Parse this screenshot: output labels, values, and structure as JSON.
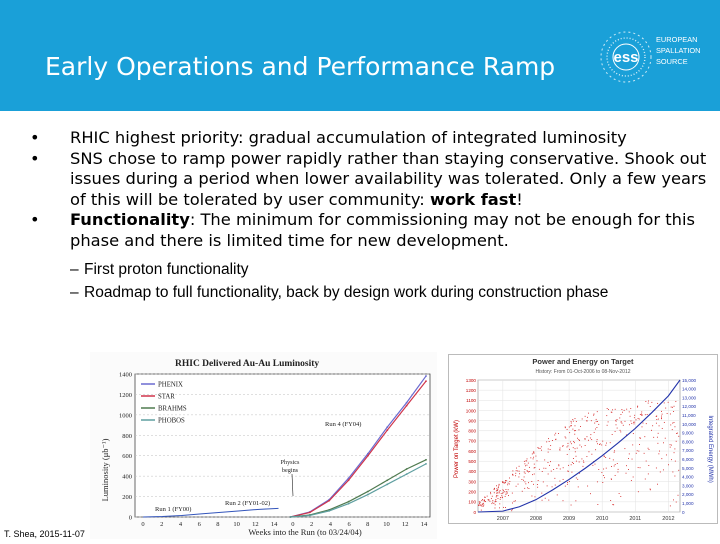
{
  "header": {
    "title": "Early Operations and Performance Ramp",
    "logo": {
      "mark": "ess",
      "line1": "EUROPEAN",
      "line2": "SPALLATION",
      "line3": "SOURCE"
    }
  },
  "bullets": [
    {
      "text": "RHIC highest priority: gradual accumulation of integrated luminosity"
    },
    {
      "text": "SNS chose to ramp power rapidly rather than staying conservative. Shook out issues during a period when lower availability was tolerated. Only a few years of this will be tolerated by user community: ",
      "bold_tail": "work fast",
      "tail_end": "!"
    },
    {
      "bold_head": "Functionality",
      "text": ": The minimum for commissioning may not be enough for this phase and there is limited time for new development."
    }
  ],
  "sub_bullets": [
    "First proton functionality",
    "Roadmap to full functionality, back by design work during construction phase"
  ],
  "footer": "T. Shea, 2015-11-07",
  "chart_data": [
    {
      "type": "line",
      "title": "RHIC Delivered Au-Au Luminosity",
      "xlabel": "Weeks into the Run   (to 03/24/04)",
      "ylabel": "Luminosity (μb⁻¹)",
      "x_ticks": [
        "0",
        "2",
        "4",
        "6",
        "8",
        "10",
        "12",
        "14",
        "0",
        "2",
        "4",
        "6",
        "8",
        "10",
        "12",
        "14"
      ],
      "y_ticks": [
        "0",
        "200",
        "400",
        "600",
        "800",
        "1000",
        "1200",
        "1400"
      ],
      "ylim": [
        0,
        1400
      ],
      "legend": [
        "PHENIX",
        "STAR",
        "BRAHMS",
        "PHOBOS"
      ],
      "annotations": [
        "Run 4 (FY04)",
        "Physics begins",
        "Run 2 (FY01-02)",
        "Run 1 (FY00)"
      ],
      "series": [
        {
          "name": "PHENIX",
          "color": "#6b6bd0",
          "x": [
            0,
            2,
            4,
            6,
            8,
            10,
            12,
            14
          ],
          "y": [
            0,
            50,
            170,
            380,
            620,
            880,
            1120,
            1380
          ]
        },
        {
          "name": "STAR",
          "color": "#d0344a",
          "x": [
            0,
            2,
            4,
            6,
            8,
            10,
            12,
            14
          ],
          "y": [
            0,
            45,
            160,
            360,
            600,
            850,
            1090,
            1330
          ]
        },
        {
          "name": "BRAHMS",
          "color": "#4f7a4f",
          "x": [
            0,
            2,
            4,
            6,
            8,
            10,
            12,
            14
          ],
          "y": [
            0,
            20,
            70,
            150,
            250,
            360,
            470,
            560
          ]
        },
        {
          "name": "PHOBOS",
          "color": "#5f9fa0",
          "x": [
            0,
            2,
            4,
            6,
            8,
            10,
            12,
            14
          ],
          "y": [
            0,
            15,
            60,
            130,
            220,
            320,
            420,
            520
          ]
        }
      ],
      "run2_series": {
        "color": "#3355bb",
        "x": [
          0,
          2,
          4,
          6,
          8,
          10,
          12,
          14
        ],
        "y": [
          0,
          5,
          15,
          30,
          45,
          60,
          75,
          85
        ]
      }
    },
    {
      "type": "scatter",
      "title": "Power and Energy on Target",
      "subtitle": "History:  From 01-Oct-2006 to 08-Nov-2012",
      "ylabel": "Power on Target (kW)",
      "y2label": "Integrated Energy (MWh)",
      "x_ticks": [
        "2007",
        "2008",
        "2009",
        "2010",
        "2011",
        "2012"
      ],
      "y_ticks": [
        "0",
        "100",
        "200",
        "300",
        "400",
        "500",
        "600",
        "700",
        "800",
        "900",
        "1000",
        "1100",
        "1200",
        "1300"
      ],
      "ylim": [
        0,
        1300
      ],
      "y2_ticks": [
        "0",
        "1,000",
        "2,000",
        "3,000",
        "4,000",
        "5,000",
        "6,000",
        "7,000",
        "8,000",
        "9,000",
        "10,000",
        "11,000",
        "12,000",
        "13,000",
        "14,000",
        "15,000"
      ],
      "y2lim": [
        0,
        15000
      ],
      "power_color": "#d42020",
      "energy_color": "#2233aa",
      "energy": {
        "x": [
          2006.75,
          2007.5,
          2008.0,
          2008.5,
          2009.0,
          2009.5,
          2010.0,
          2010.5,
          2011.0,
          2011.5,
          2012.0,
          2012.5,
          2012.85
        ],
        "y": [
          0,
          100,
          600,
          1400,
          2500,
          3700,
          5000,
          6400,
          7900,
          9500,
          11300,
          13200,
          15000
        ]
      },
      "power_envelope": {
        "x": [
          2006.75,
          2007.25,
          2007.75,
          2008.25,
          2008.75,
          2009.25,
          2009.75,
          2010.25,
          2010.75,
          2011.25,
          2011.75,
          2012.25,
          2012.85
        ],
        "y": [
          100,
          250,
          400,
          550,
          700,
          850,
          950,
          1000,
          1050,
          1050,
          1100,
          1100,
          1100
        ]
      }
    }
  ]
}
